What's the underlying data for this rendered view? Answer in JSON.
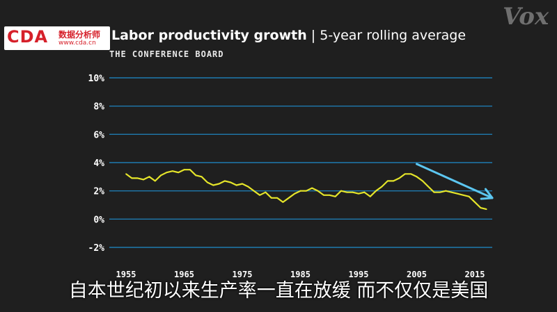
{
  "branding": {
    "logo_text": "CDA",
    "logo_cn": "数据分析师",
    "logo_url": "www.cda.cn",
    "watermark": "Vox"
  },
  "header": {
    "title_bold": "Labor productivity growth",
    "title_rest": " | 5-year rolling average",
    "source": "THE CONFERENCE BOARD"
  },
  "caption": "自本世纪初以来生产率一直在放缓 而不仅仅是美国",
  "colors": {
    "line": "#e5e52a",
    "grid": "#1f7bb0",
    "arrow": "#5cc6f0"
  },
  "chart_data": {
    "type": "line",
    "title": "Labor productivity growth | 5-year rolling average",
    "source": "THE CONFERENCE BOARD",
    "xlabel": "",
    "ylabel": "",
    "ylim": [
      -2,
      10
    ],
    "xlim": [
      1955,
      2018
    ],
    "y_ticks": [
      10,
      8,
      6,
      4,
      2,
      0,
      -2
    ],
    "y_tick_labels": [
      "10%",
      "8%",
      "6%",
      "4%",
      "2%",
      "0%",
      "-2%"
    ],
    "x_ticks": [
      1955,
      1965,
      1975,
      1985,
      1995,
      2005,
      2015
    ],
    "x_tick_labels": [
      "1955",
      "1965",
      "1975",
      "1985",
      "1995",
      "2005",
      "2015"
    ],
    "grid": true,
    "series": [
      {
        "x": [
          1955,
          1956,
          1957,
          1958,
          1959,
          1960,
          1961,
          1962,
          1963,
          1964,
          1965,
          1966,
          1967,
          1968,
          1969,
          1970,
          1971,
          1972,
          1973,
          1974,
          1975,
          1976,
          1977,
          1978,
          1979,
          1980,
          1981,
          1982,
          1983,
          1984,
          1985,
          1986,
          1987,
          1988,
          1989,
          1990,
          1991,
          1992,
          1993,
          1994,
          1995,
          1996,
          1997,
          1998,
          1999,
          2000,
          2001,
          2002,
          2003,
          2004,
          2005,
          2006,
          2007,
          2008,
          2009,
          2010,
          2011,
          2012,
          2013,
          2014,
          2015,
          2016,
          2017
        ],
        "y": [
          3.2,
          2.9,
          2.9,
          2.8,
          3.0,
          2.7,
          3.1,
          3.3,
          3.4,
          3.3,
          3.5,
          3.5,
          3.1,
          3.0,
          2.6,
          2.4,
          2.5,
          2.7,
          2.6,
          2.4,
          2.5,
          2.3,
          2.0,
          1.7,
          1.9,
          1.5,
          1.5,
          1.2,
          1.5,
          1.8,
          2.0,
          2.0,
          2.2,
          2.0,
          1.7,
          1.7,
          1.6,
          2.0,
          1.9,
          1.9,
          1.8,
          1.9,
          1.6,
          2.0,
          2.3,
          2.7,
          2.7,
          2.9,
          3.2,
          3.2,
          3.0,
          2.7,
          2.3,
          1.9,
          1.9,
          2.0,
          1.9,
          1.8,
          1.7,
          1.6,
          1.2,
          0.8,
          0.7
        ]
      }
    ],
    "annotations": [
      {
        "type": "trend-arrow",
        "from": [
          2005,
          3.9
        ],
        "to": [
          2018,
          1.5
        ]
      }
    ]
  }
}
